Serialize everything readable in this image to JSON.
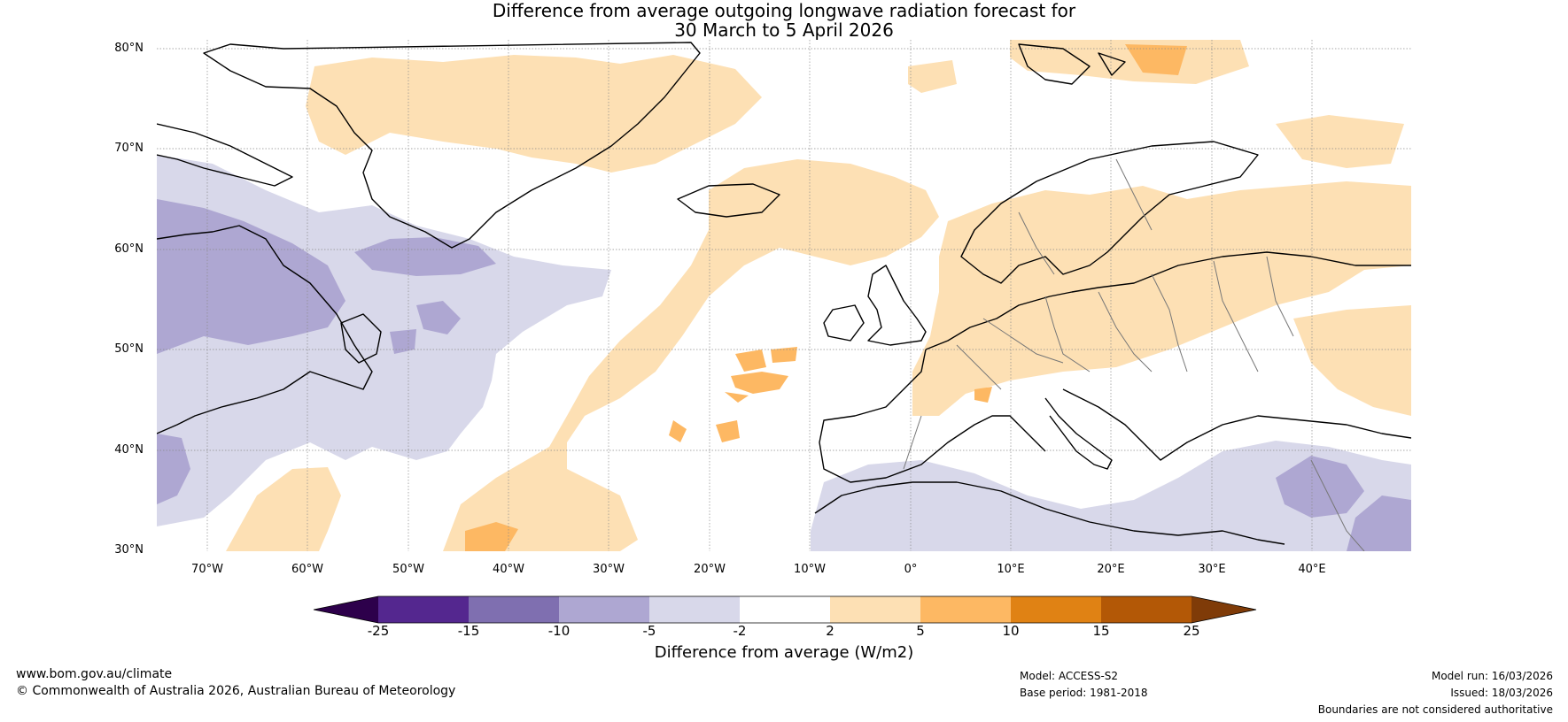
{
  "title": {
    "line1": "Difference from average outgoing longwave radiation forecast for",
    "line2": "30 March to 5 April 2026"
  },
  "map": {
    "region": "North Atlantic and Europe",
    "lat_labels": [
      "80°N",
      "70°N",
      "60°N",
      "50°N",
      "40°N",
      "30°N"
    ],
    "lon_labels": [
      "70°W",
      "60°W",
      "50°W",
      "40°W",
      "30°W",
      "20°W",
      "10°W",
      "0°",
      "10°E",
      "20°E",
      "30°E",
      "40°E"
    ],
    "lon_range": [
      -75,
      50
    ],
    "lat_range": [
      30,
      81
    ]
  },
  "colorbar": {
    "title": "Difference from average (W/m2)",
    "tick_labels": [
      "-25",
      "-15",
      "-10",
      "-5",
      "-2",
      "2",
      "5",
      "10",
      "15",
      "25"
    ],
    "bins": [
      {
        "range": "-25 to -15",
        "color": "#54278f"
      },
      {
        "range": "-15 to -10",
        "color": "#7f6fb0"
      },
      {
        "range": "-10 to -5",
        "color": "#aea7d2"
      },
      {
        "range": "-5 to -2",
        "color": "#d8d8ea"
      },
      {
        "range": "-2 to 2",
        "color": "#ffffff"
      },
      {
        "range": "2 to 5",
        "color": "#fde0b4"
      },
      {
        "range": "5 to 10",
        "color": "#fdb863"
      },
      {
        "range": "10 to 15",
        "color": "#e08214"
      },
      {
        "range": "15 to 25",
        "color": "#b35806"
      }
    ],
    "under_color": "#2d004b",
    "over_color": "#7f3b08"
  },
  "footer": {
    "website": "www.bom.gov.au/climate",
    "copyright": "© Commonwealth of Australia 2026, Australian Bureau of Meteorology",
    "model": "Model: ACCESS-S2",
    "base_period": "Base period: 1981-2018",
    "model_run": "Model run: 16/03/2026",
    "issued": "Issued: 18/03/2026",
    "disclaimer": "Boundaries are not considered authoritative"
  }
}
